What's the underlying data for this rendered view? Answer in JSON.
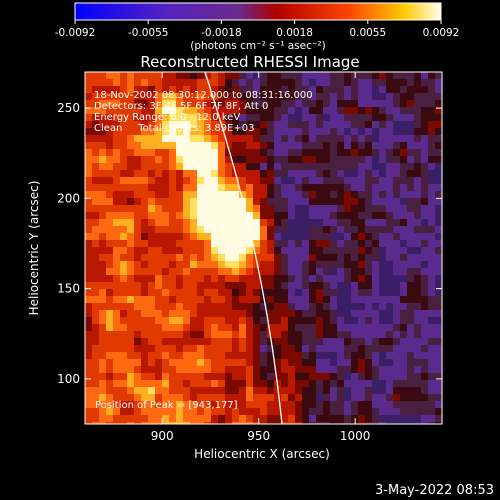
{
  "colorbar": {
    "ticks": [
      "-0.0092",
      "-0.0055",
      "-0.0018",
      "0.0018",
      "0.0055",
      "0.0092"
    ],
    "unit_label": "(photons cm⁻² s⁻¹ asec⁻²)"
  },
  "plot": {
    "title": "Reconstructed RHESSI Image",
    "info_lines": [
      "18-Nov-2002 08:30:12.000 to 08:31:16.000",
      "Detectors: 3F 4F 5F 6F 7F 8F, Att 0",
      "Energy Range: 6.0 - 12.0 keV",
      "Clean     Total counts: 3.89E+03"
    ],
    "peak_label": "Position of Peak = [943,177]",
    "x_axis": {
      "label": "Heliocentric X (arcsec)",
      "min": 860,
      "max": 1045,
      "ticks": [
        "900",
        "950",
        "1000"
      ],
      "tick_values": [
        900,
        950,
        1000
      ]
    },
    "y_axis": {
      "label": "Heliocentric Y (arcsec)",
      "min": 75,
      "max": 270,
      "ticks": [
        "100",
        "150",
        "200",
        "250"
      ],
      "tick_values": [
        100,
        150,
        200,
        250
      ]
    },
    "peak": {
      "x": 943,
      "y": 177
    }
  },
  "footer": {
    "timestamp": "3-May-2022 08:53"
  }
}
